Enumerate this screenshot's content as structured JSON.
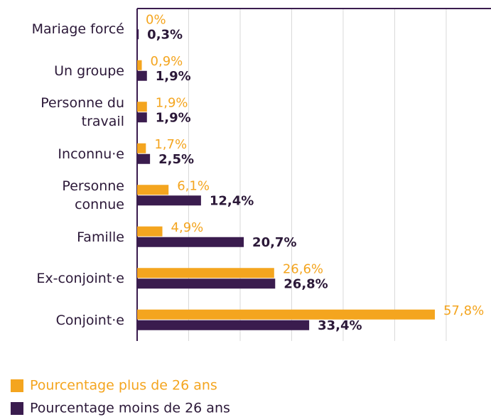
{
  "chart_data": {
    "type": "bar",
    "orientation": "horizontal",
    "categories": [
      "Mariage forcé",
      "Un groupe",
      "Personne du\ntravail",
      "Inconnu·e",
      "Personne\nconnue",
      "Famille",
      "Ex-conjoint·e",
      "Conjoint·e"
    ],
    "series": [
      {
        "name": "Pourcentage plus de 26 ans",
        "color": "#f4a51f",
        "values": [
          0,
          0.9,
          1.9,
          1.7,
          6.1,
          4.9,
          26.6,
          57.8
        ],
        "value_labels": [
          "0%",
          "0,9%",
          "1,9%",
          "1,7%",
          "6,1%",
          "4,9%",
          "26,6%",
          "57,8%"
        ]
      },
      {
        "name": "Pourcentage moins de 26 ans",
        "color": "#3a1c4e",
        "values": [
          0.3,
          1.9,
          1.9,
          2.5,
          12.4,
          20.7,
          26.8,
          33.4
        ],
        "value_labels": [
          "0,3%",
          "1,9%",
          "1,9%",
          "2,5%",
          "12,4%",
          "20,7%",
          "26,8%",
          "33,4%"
        ]
      }
    ],
    "xlim": [
      0,
      68.7
    ],
    "xticks": [
      0,
      10,
      20,
      30,
      40,
      50,
      60
    ],
    "grid": true,
    "legend": "bottom-left"
  }
}
